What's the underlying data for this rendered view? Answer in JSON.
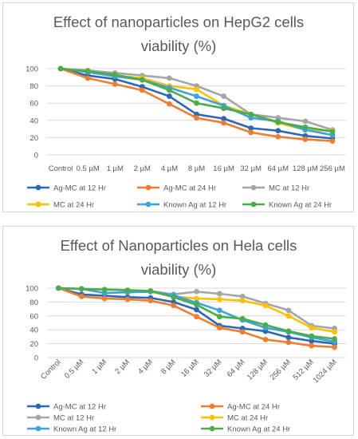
{
  "chart_data": [
    {
      "type": "line",
      "title": "Effect of nanoparticles on HepG2 cells viability (%)",
      "title_lines": [
        "Effect of nanoparticles on HepG2 cells",
        "viability (%)"
      ],
      "categories": [
        "Control",
        "0.5 µM",
        "1 µM",
        "2 µM",
        "4 µM",
        "8 µM",
        "16 µM",
        "32 µM",
        "64 µM",
        "128 µM",
        "256 µM"
      ],
      "ylim": [
        0,
        100
      ],
      "yticks": [
        "0",
        "20",
        "40",
        "60",
        "80",
        "100"
      ],
      "grid": true,
      "legend_position": "bottom",
      "series": [
        {
          "name": "Ag-MC at 12 Hr",
          "color": "#2e67b1",
          "values": [
            100,
            92,
            88,
            79,
            68,
            47,
            42,
            31,
            28,
            22,
            19
          ]
        },
        {
          "name": "Ag-MC at 24 Hr",
          "color": "#ed7d31",
          "values": [
            100,
            89,
            82,
            75,
            59,
            43,
            37,
            26,
            21,
            18,
            16
          ]
        },
        {
          "name": "MC at 12 Hr",
          "color": "#a5a5a5",
          "values": [
            100,
            98,
            95,
            92,
            89,
            80,
            68,
            47,
            43,
            39,
            29
          ]
        },
        {
          "name": "MC at 24 Hr",
          "color": "#ffc000",
          "values": [
            100,
            97,
            92,
            89,
            80,
            76,
            57,
            47,
            37,
            29,
            28
          ]
        },
        {
          "name": "Known Ag  at 12 Hr",
          "color": "#3ea3dc",
          "values": [
            100,
            96,
            91,
            87,
            78,
            68,
            57,
            43,
            39,
            29,
            23
          ]
        },
        {
          "name": "Known Ag  at 24 Hr",
          "color": "#4aac4a",
          "values": [
            100,
            97,
            93,
            87,
            75,
            60,
            54,
            47,
            38,
            32,
            27
          ]
        }
      ]
    },
    {
      "type": "line",
      "title": "Effect of Nanoparticles on Hela cells viability (%)",
      "title_lines": [
        "Effect of Nanoparticles on Hela cells",
        "viability (%)"
      ],
      "categories": [
        "Control",
        "0.5 µM",
        "1 µM",
        "2 µM",
        "4 µM",
        "8 µM",
        "16 µM",
        "32 µM",
        "64 µM",
        "128 µM",
        "256 µM",
        "512 µM",
        "1024 µM"
      ],
      "ylim": [
        0,
        100
      ],
      "yticks": [
        "0",
        "20",
        "40",
        "60",
        "80",
        "100"
      ],
      "grid": true,
      "legend_position": "bottom",
      "series": [
        {
          "name": "Ag-MC at 12 Hr",
          "color": "#2e67b1",
          "values": [
            100,
            91,
            89,
            87,
            86,
            80,
            69,
            46,
            42,
            38,
            29,
            24,
            20
          ]
        },
        {
          "name": "Ag-MC at 24 Hr",
          "color": "#ed7d31",
          "values": [
            100,
            88,
            85,
            84,
            82,
            75,
            59,
            43,
            37,
            26,
            22,
            17,
            15
          ]
        },
        {
          "name": "MC at 12 Hr",
          "color": "#a5a5a5",
          "values": [
            100,
            99,
            98,
            97,
            96,
            91,
            95,
            92,
            88,
            78,
            68,
            46,
            42
          ]
        },
        {
          "name": "MC at 24 Hr",
          "color": "#ffc000",
          "values": [
            100,
            99,
            98,
            97,
            95,
            88,
            85,
            84,
            82,
            75,
            60,
            43,
            37
          ]
        },
        {
          "name": "Known Ag  at 12 Hr",
          "color": "#3ea3dc",
          "values": [
            100,
            99,
            93,
            94,
            95,
            90,
            79,
            68,
            54,
            43,
            37,
            29,
            23
          ]
        },
        {
          "name": "Known Ag  at 24 Hr",
          "color": "#4aac4a",
          "values": [
            100,
            99,
            98,
            97,
            96,
            87,
            76,
            59,
            56,
            47,
            38,
            31,
            27
          ]
        }
      ]
    }
  ]
}
